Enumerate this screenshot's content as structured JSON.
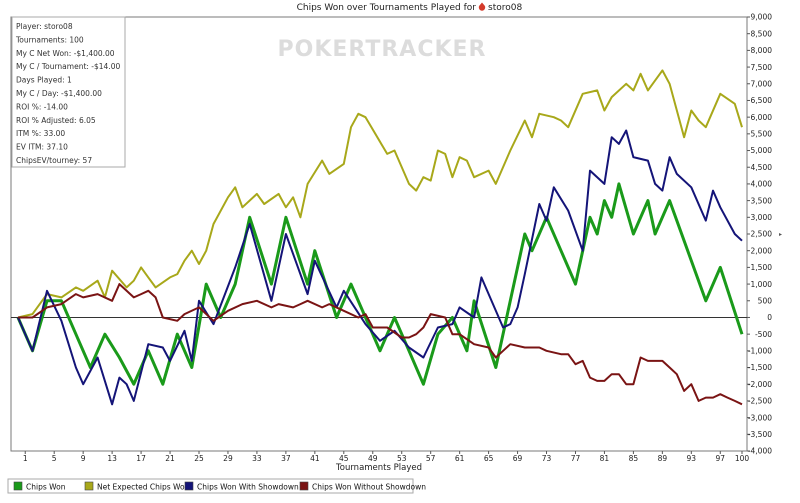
{
  "chart_data": {
    "type": "line",
    "title": "Chips Won over Tournaments Played for",
    "player_name": "storo08",
    "xlabel": "Tournaments Played",
    "ylabel": "",
    "xlim": [
      0,
      100
    ],
    "ylim": [
      -4000,
      9000
    ],
    "x_ticks": [
      1,
      5,
      9,
      13,
      17,
      21,
      25,
      29,
      33,
      37,
      41,
      45,
      49,
      53,
      57,
      61,
      65,
      69,
      73,
      77,
      81,
      85,
      89,
      93,
      97,
      100
    ],
    "y_ticks": [
      9000,
      8500,
      8000,
      7500,
      7000,
      6500,
      6000,
      5500,
      5000,
      4500,
      4000,
      3500,
      3000,
      2500,
      2000,
      1500,
      1000,
      500,
      0,
      -500,
      -1000,
      -1500,
      -2000,
      -2500,
      -3000,
      -3500,
      -4000
    ],
    "y_tick_labels": [
      "9,000",
      "8,500",
      "8,000",
      "7,500",
      "7,000",
      "6,500",
      "6,000",
      "5,500",
      "5,000",
      "4,500",
      "4,000",
      "3,500",
      "3,000",
      "2,500",
      "2,000",
      "1,500",
      "1,000",
      "500",
      "0",
      "-500",
      "-1,000",
      "-1,500",
      "-2,000",
      "-2,500",
      "-3,000",
      "-3,500",
      "-4,000"
    ],
    "watermark": "POKERTRACKER",
    "grid": false,
    "legend_position": "bottom-left",
    "series": [
      {
        "name": "Chips Won",
        "color": "#1a9a1a",
        "points": [
          [
            0,
            0
          ],
          [
            2,
            -1000
          ],
          [
            4,
            500
          ],
          [
            6,
            500
          ],
          [
            8,
            -500
          ],
          [
            10,
            -1500
          ],
          [
            12,
            -500
          ],
          [
            14,
            -1200
          ],
          [
            16,
            -2000
          ],
          [
            18,
            -1000
          ],
          [
            20,
            -2000
          ],
          [
            22,
            -500
          ],
          [
            24,
            -1500
          ],
          [
            26,
            1000
          ],
          [
            28,
            0
          ],
          [
            30,
            1000
          ],
          [
            32,
            3000
          ],
          [
            35,
            1000
          ],
          [
            37,
            3000
          ],
          [
            40,
            1000
          ],
          [
            41,
            2000
          ],
          [
            44,
            0
          ],
          [
            46,
            1000
          ],
          [
            48,
            0
          ],
          [
            50,
            -1000
          ],
          [
            52,
            0
          ],
          [
            54,
            -1000
          ],
          [
            56,
            -2000
          ],
          [
            58,
            -500
          ],
          [
            60,
            0
          ],
          [
            62,
            -1000
          ],
          [
            63,
            500
          ],
          [
            66,
            -1500
          ],
          [
            70,
            2500
          ],
          [
            71,
            2000
          ],
          [
            73,
            3000
          ],
          [
            75,
            2000
          ],
          [
            77,
            1000
          ],
          [
            79,
            3000
          ],
          [
            80,
            2500
          ],
          [
            81,
            3500
          ],
          [
            82,
            3000
          ],
          [
            83,
            4000
          ],
          [
            85,
            2500
          ],
          [
            87,
            3500
          ],
          [
            88,
            2500
          ],
          [
            90,
            3500
          ],
          [
            95,
            500
          ],
          [
            97,
            1500
          ],
          [
            100,
            -500
          ]
        ]
      },
      {
        "name": "Net Expected Chips Won",
        "color": "#a8a81a",
        "points": [
          [
            0,
            0
          ],
          [
            2,
            100
          ],
          [
            4,
            700
          ],
          [
            6,
            600
          ],
          [
            8,
            900
          ],
          [
            9,
            800
          ],
          [
            11,
            1100
          ],
          [
            12,
            600
          ],
          [
            13,
            1400
          ],
          [
            15,
            900
          ],
          [
            16,
            1100
          ],
          [
            17,
            1500
          ],
          [
            18,
            1200
          ],
          [
            19,
            900
          ],
          [
            21,
            1200
          ],
          [
            22,
            1300
          ],
          [
            23,
            1700
          ],
          [
            24,
            2000
          ],
          [
            25,
            1600
          ],
          [
            26,
            2000
          ],
          [
            27,
            2800
          ],
          [
            29,
            3600
          ],
          [
            30,
            3900
          ],
          [
            31,
            3300
          ],
          [
            33,
            3700
          ],
          [
            34,
            3400
          ],
          [
            36,
            3700
          ],
          [
            37,
            3300
          ],
          [
            38,
            3600
          ],
          [
            39,
            3000
          ],
          [
            40,
            4000
          ],
          [
            42,
            4700
          ],
          [
            43,
            4300
          ],
          [
            45,
            4600
          ],
          [
            46,
            5700
          ],
          [
            47,
            6100
          ],
          [
            48,
            6000
          ],
          [
            51,
            4900
          ],
          [
            52,
            5000
          ],
          [
            54,
            4000
          ],
          [
            55,
            3800
          ],
          [
            56,
            4200
          ],
          [
            57,
            4100
          ],
          [
            58,
            5000
          ],
          [
            59,
            4900
          ],
          [
            60,
            4200
          ],
          [
            61,
            4800
          ],
          [
            62,
            4700
          ],
          [
            63,
            4200
          ],
          [
            65,
            4400
          ],
          [
            66,
            4000
          ],
          [
            68,
            5000
          ],
          [
            70,
            5900
          ],
          [
            71,
            5400
          ],
          [
            72,
            6100
          ],
          [
            74,
            6000
          ],
          [
            75,
            5900
          ],
          [
            76,
            5700
          ],
          [
            78,
            6700
          ],
          [
            80,
            6800
          ],
          [
            81,
            6200
          ],
          [
            82,
            6600
          ],
          [
            84,
            7000
          ],
          [
            85,
            6800
          ],
          [
            86,
            7300
          ],
          [
            87,
            6800
          ],
          [
            89,
            7400
          ],
          [
            90,
            7000
          ],
          [
            92,
            5400
          ],
          [
            93,
            6200
          ],
          [
            94,
            5900
          ],
          [
            95,
            5700
          ],
          [
            97,
            6700
          ],
          [
            99,
            6400
          ],
          [
            100,
            5700
          ]
        ]
      },
      {
        "name": "Chips Won With Showdown",
        "color": "#141478",
        "points": [
          [
            0,
            0
          ],
          [
            2,
            -1000
          ],
          [
            4,
            800
          ],
          [
            6,
            -100
          ],
          [
            8,
            -1500
          ],
          [
            9,
            -2000
          ],
          [
            11,
            -1200
          ],
          [
            13,
            -2600
          ],
          [
            14,
            -1800
          ],
          [
            15,
            -2000
          ],
          [
            16,
            -2500
          ],
          [
            18,
            -800
          ],
          [
            20,
            -900
          ],
          [
            21,
            -1300
          ],
          [
            23,
            -400
          ],
          [
            24,
            -1300
          ],
          [
            25,
            500
          ],
          [
            27,
            -200
          ],
          [
            30,
            1500
          ],
          [
            32,
            2800
          ],
          [
            35,
            500
          ],
          [
            37,
            2500
          ],
          [
            40,
            700
          ],
          [
            41,
            1700
          ],
          [
            44,
            300
          ],
          [
            45,
            800
          ],
          [
            48,
            -200
          ],
          [
            50,
            -700
          ],
          [
            52,
            -400
          ],
          [
            54,
            -900
          ],
          [
            56,
            -1200
          ],
          [
            58,
            -300
          ],
          [
            60,
            -200
          ],
          [
            61,
            300
          ],
          [
            63,
            0
          ],
          [
            64,
            1200
          ],
          [
            67,
            -300
          ],
          [
            68,
            -200
          ],
          [
            69,
            300
          ],
          [
            70,
            1300
          ],
          [
            72,
            3400
          ],
          [
            73,
            2900
          ],
          [
            74,
            3900
          ],
          [
            76,
            3200
          ],
          [
            78,
            2000
          ],
          [
            79,
            4400
          ],
          [
            81,
            4000
          ],
          [
            82,
            5400
          ],
          [
            83,
            5200
          ],
          [
            84,
            5600
          ],
          [
            85,
            4800
          ],
          [
            87,
            4700
          ],
          [
            88,
            4000
          ],
          [
            89,
            3800
          ],
          [
            90,
            4800
          ],
          [
            91,
            4300
          ],
          [
            93,
            3900
          ],
          [
            95,
            2900
          ],
          [
            96,
            3800
          ],
          [
            97,
            3300
          ],
          [
            99,
            2500
          ],
          [
            100,
            2300
          ]
        ]
      },
      {
        "name": "Chips Won Without Showdown",
        "color": "#7a1414",
        "points": [
          [
            0,
            0
          ],
          [
            2,
            0
          ],
          [
            4,
            300
          ],
          [
            6,
            400
          ],
          [
            8,
            700
          ],
          [
            9,
            600
          ],
          [
            11,
            700
          ],
          [
            13,
            500
          ],
          [
            14,
            1000
          ],
          [
            16,
            600
          ],
          [
            17,
            700
          ],
          [
            18,
            800
          ],
          [
            19,
            600
          ],
          [
            20,
            0
          ],
          [
            22,
            -100
          ],
          [
            23,
            100
          ],
          [
            25,
            300
          ],
          [
            27,
            -100
          ],
          [
            29,
            200
          ],
          [
            31,
            400
          ],
          [
            33,
            500
          ],
          [
            35,
            300
          ],
          [
            36,
            400
          ],
          [
            38,
            300
          ],
          [
            39,
            400
          ],
          [
            40,
            500
          ],
          [
            42,
            300
          ],
          [
            43,
            400
          ],
          [
            45,
            200
          ],
          [
            47,
            0
          ],
          [
            48,
            100
          ],
          [
            49,
            -300
          ],
          [
            51,
            -300
          ],
          [
            53,
            -600
          ],
          [
            54,
            -600
          ],
          [
            55,
            -500
          ],
          [
            56,
            -300
          ],
          [
            57,
            100
          ],
          [
            59,
            0
          ],
          [
            60,
            -500
          ],
          [
            61,
            -500
          ],
          [
            63,
            -800
          ],
          [
            65,
            -900
          ],
          [
            66,
            -1200
          ],
          [
            67,
            -1000
          ],
          [
            68,
            -800
          ],
          [
            70,
            -900
          ],
          [
            72,
            -900
          ],
          [
            73,
            -1000
          ],
          [
            75,
            -1100
          ],
          [
            76,
            -1100
          ],
          [
            77,
            -1400
          ],
          [
            78,
            -1300
          ],
          [
            79,
            -1800
          ],
          [
            80,
            -1900
          ],
          [
            81,
            -1900
          ],
          [
            82,
            -1700
          ],
          [
            83,
            -1700
          ],
          [
            84,
            -2000
          ],
          [
            85,
            -2000
          ],
          [
            86,
            -1200
          ],
          [
            87,
            -1300
          ],
          [
            88,
            -1300
          ],
          [
            89,
            -1300
          ],
          [
            90,
            -1500
          ],
          [
            91,
            -1700
          ],
          [
            92,
            -2200
          ],
          [
            93,
            -2000
          ],
          [
            94,
            -2500
          ],
          [
            95,
            -2400
          ],
          [
            96,
            -2400
          ],
          [
            97,
            -2300
          ],
          [
            98,
            -2400
          ],
          [
            99,
            -2500
          ],
          [
            100,
            -2600
          ]
        ]
      }
    ]
  },
  "stats_panel": {
    "lines": [
      "Player: storo08",
      "Tournaments: 100",
      "My C Net Won: -$1,400.00",
      "My C / Tournament: -$14.00",
      "Days Played: 1",
      "My C / Day: -$1,400.00",
      "ROI %: -14.00",
      "ROI % Adjusted: 6.05",
      "ITM %: 33.00",
      "EV ITM: 37.10",
      "ChipsEV/tourney: 57"
    ]
  },
  "colors": {
    "border": "#7a7a7a",
    "background": "#ffffff",
    "stats_border": "#aaaaaa",
    "watermark": "#dcdcdc"
  }
}
